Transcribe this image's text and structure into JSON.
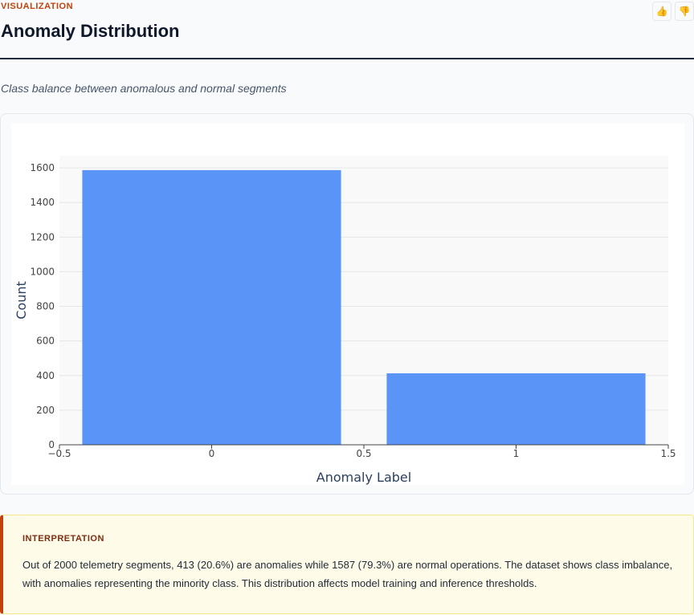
{
  "header": {
    "eyebrow": "VISUALIZATION",
    "title": "Anomaly Distribution",
    "subtitle": "Class balance between anomalous and normal segments",
    "feedback": {
      "up_icon": "thumbs-up-icon",
      "down_icon": "thumbs-down-icon"
    }
  },
  "chart_data": {
    "type": "bar",
    "x": [
      0,
      1
    ],
    "values": [
      1587,
      413
    ],
    "bar_width": 0.85,
    "xlabel": "Anomaly Label",
    "ylabel": "Count",
    "xlim": [
      -0.5,
      1.5
    ],
    "ylim": [
      0,
      1670
    ],
    "xticks": [
      -0.5,
      0,
      0.5,
      1,
      1.5
    ],
    "xtick_labels": [
      "−0.5",
      "0",
      "0.5",
      "1",
      "1.5"
    ],
    "yticks": [
      0,
      200,
      400,
      600,
      800,
      1000,
      1200,
      1400,
      1600
    ],
    "ytick_labels": [
      "0",
      "200",
      "400",
      "600",
      "800",
      "1000",
      "1200",
      "1400",
      "1600"
    ],
    "grid": true,
    "bar_color": "#5b94f7",
    "plot_bg": "#f9f9f9"
  },
  "interpretation": {
    "label": "INTERPRETATION",
    "text": "Out of 2000 telemetry segments, 413 (20.6%) are anomalies while 1587 (79.3%) are normal operations. The dataset shows class imbalance, with anomalies representing the minority class. This distribution affects model training and inference thresholds."
  },
  "colors": {
    "accent": "#c2410c",
    "rule": "#1e293b"
  }
}
